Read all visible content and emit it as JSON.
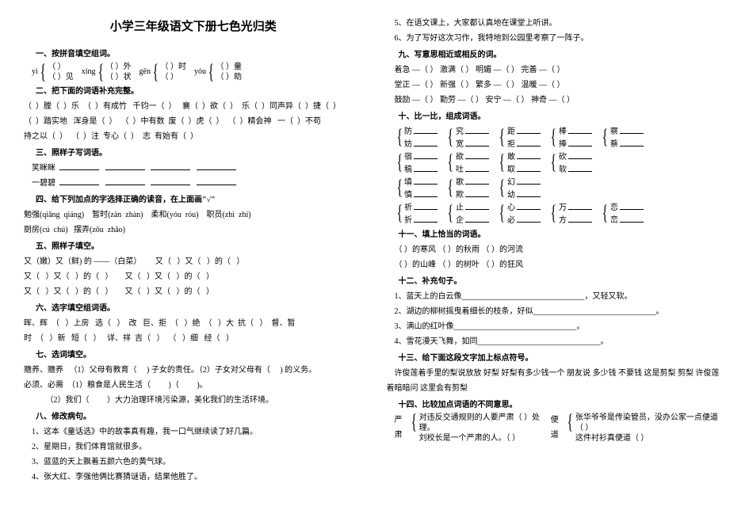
{
  "title": "小学三年级语文下册七色光归类",
  "left": {
    "s1": {
      "h": "一、按拼音填空组词。",
      "items": [
        {
          "py": "yì",
          "a": "（   ）",
          "b": "（   ）见"
        },
        {
          "py": "xíng",
          "a": "（   ）外",
          "b": "（   ）状"
        },
        {
          "py": "gēn",
          "a": "（   ）时",
          "b": "（   ）"
        },
        {
          "py": "yóu",
          "a": "（   ）童",
          "b": "（   ）助"
        }
      ],
      "midrow": "（   ）随"
    },
    "s2": {
      "h": "二、把下面的词语补充完整。",
      "lines": [
        "（  ）膛（  ）乐  （  ）有成竹   千钧一（  ）   襄（  ）欲（  ）  乐（  ）同声异（  ）捷（  ）",
        "（  ）踏实地   浑身是（  ）  （  ）中有数  废（  ）虎（  ）  （  ）精会神   一（  ）不苟",
        "持之以（  ）  （  ）注  专心（  ）  志  有始有（  ）"
      ]
    },
    "s3": {
      "h": "三、照样子写词语。",
      "rows": [
        {
          "label": "笑眯眯",
          "blanks": 4
        },
        {
          "label": "一碧碧",
          "blanks": 4
        }
      ]
    },
    "s4": {
      "h": "四、给下列加点的字选择正确的读音，在上面画\"√\"",
      "lines": [
        "勉强(qiǎng  qiáng)    暂时(zàn  zhàn)    柔和(yóu  róu)    职员(zhì  zhí)",
        "厨房(cú  chú)   摆弄(zǒu  zhǎo)"
      ]
    },
    "s5": {
      "h": "五、照样子填空。",
      "lines": [
        "又（嫩）又（鲜) 的 ——（白菜）       又（   ）又（   ）的（   ）",
        "又（   ）又（   ）的（   ）      又（   ）又（   ）的（   ）",
        "又（   ）又（   ）的（   ）      又（   ）又（   ）的（   ）"
      ]
    },
    "s6": {
      "h": "六、选字填空组词语。",
      "lines": [
        "晖、辉  （   ）上房   选（   ）  改   巨、拒  （   ）绝  （   ）大  抗（   ）  督、暂",
        "时  （   ）新   短（   ）   详、祥  吉（   ）  （   ）细   经（   ）"
      ]
    },
    "s7": {
      "h": "七、选词填空。",
      "lines": [
        "赡养、赡养   （1）父母有教育（     ) 子女的责任。（2）子女对父母有（     ) 的义务。",
        "必须、必需  （1）粮食是人民生活（         )（         )。",
        "           （2）我们（         ）大力治理环境污染源，美化我们的生活环境。"
      ]
    },
    "s8": {
      "h": "八、修改病句。",
      "lines": [
        "1、这本《童话选》中的故事真有趣，我一口气继续读了好几篇。",
        "2、星期日，我们体育馆就很多。",
        "3、蓝蓝的天上飘着五颜六色的黄气球。",
        "4、张大红、李强他俩比赛猜谜语，结果他胜了。"
      ]
    }
  },
  "right": {
    "s8_cont": [
      "5、在语文课上，大家都认真地在课堂上听讲。",
      "6、为了写好这次习作，我特地到公园里考察了一阵子。"
    ],
    "s9": {
      "h": "九、写意思相近或相反的词。",
      "rows": [
        [
          "着急 —（     ）",
          "激满（     ）",
          "明媚 —（     ）",
          "完善 —（     ）"
        ],
        [
          "堂正 —（     ）",
          "新强（     ）",
          "繁多 —（     ）",
          "温暖 —（     ）"
        ],
        [
          "鼓励 —（     ）",
          "勤劳 —（     ）",
          "安宁 —（     ）",
          "神奇 —（     ）"
        ]
      ]
    },
    "s10": {
      "h": "十、比一比，组成词语。",
      "pairs": [
        [
          [
            "防",
            ""
          ],
          [
            "究",
            ""
          ],
          [
            "距",
            ""
          ],
          [
            "棒",
            ""
          ],
          [
            "察",
            ""
          ]
        ],
        [
          [
            "妨",
            ""
          ],
          [
            "宽",
            ""
          ],
          [
            "拒",
            ""
          ],
          [
            "捧",
            ""
          ],
          [
            "蔡",
            ""
          ]
        ],
        [
          [
            "宿",
            ""
          ],
          [
            "欲",
            ""
          ],
          [
            "敢",
            ""
          ],
          [
            "砍",
            ""
          ]
        ],
        [
          [
            "稿",
            ""
          ],
          [
            "吐",
            ""
          ],
          [
            "取",
            ""
          ],
          [
            "软",
            ""
          ]
        ],
        [
          [
            "填",
            ""
          ],
          [
            "歌",
            ""
          ],
          [
            "幻",
            ""
          ]
        ],
        [
          [
            "慎",
            ""
          ],
          [
            "欺",
            ""
          ],
          [
            "幼",
            ""
          ]
        ],
        [
          [
            "祈",
            ""
          ],
          [
            "止",
            ""
          ],
          [
            "心",
            ""
          ],
          [
            "万",
            ""
          ],
          [
            "恋",
            ""
          ]
        ],
        [
          [
            "折",
            ""
          ],
          [
            "企",
            ""
          ],
          [
            "必",
            ""
          ],
          [
            "方",
            ""
          ],
          [
            "峦",
            ""
          ]
        ]
      ]
    },
    "s11": {
      "h": "十一、填上恰当的词语。",
      "rows": [
        [
          "（          ）的寒风",
          "（          ）的秋雨",
          "（          ）的河流"
        ],
        [
          "（          ）的山峰",
          "（          ）的树叶",
          "（          ）的狂风"
        ]
      ]
    },
    "s12": {
      "h": "十二、补充句子。",
      "lines": [
        "1、蓝天上的白云像_______________________________，又轻又软。",
        "2、湖边的柳树摇曳着细长的枝条，好似_______________________________。",
        "3、满山的红叶像_______________________________。",
        "4、雪花漫天飞舞，如同_______________________________。"
      ]
    },
    "s13": {
      "h": "十三、给下面这段文字加上标点符号。",
      "text": "许俊莲着手里的梨说放放    好梨    好梨有多少钱一个    朋友说    多少钱    不要钱 这是剪梨    剪梨    许俊莲着暗暗问    这里会有剪梨"
    },
    "s14": {
      "h": "十四、比较加点词语的不同意思。",
      "g1": {
        "label": "严肃",
        "a": "对违反交通规则的人要严肃（          ）处理。",
        "b": "刘校长是一个严肃的人。（          ）"
      },
      "g2": {
        "label": "便道",
        "a": "张华爷爷是传染管员，没办公家一点便道（          ）",
        "b": "这件衬衫真便道（          ）"
      }
    }
  },
  "colors": {
    "text": "#000000",
    "bg": "#ffffff"
  }
}
